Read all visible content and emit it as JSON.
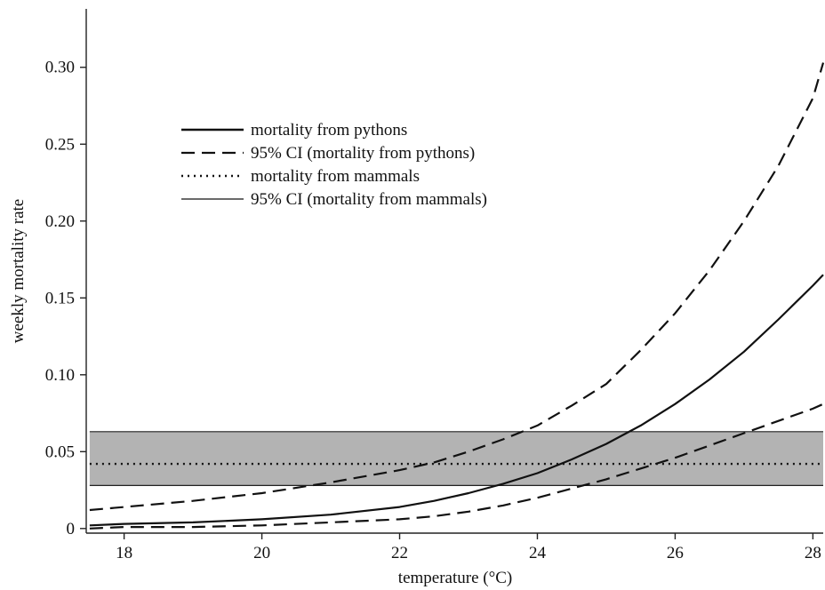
{
  "chart_data": {
    "type": "line",
    "title": "",
    "xlabel": "temperature (°C)",
    "ylabel": "weekly mortality rate",
    "xlim": [
      17.45,
      28.15
    ],
    "ylim": [
      -0.003,
      0.338
    ],
    "x_ticks": [
      18,
      20,
      22,
      24,
      26,
      28
    ],
    "x_tick_labels": [
      "18",
      "20",
      "22",
      "24",
      "26",
      "28"
    ],
    "y_ticks": [
      0,
      0.05,
      0.1,
      0.15,
      0.2,
      0.25,
      0.3
    ],
    "y_tick_labels": [
      "0",
      "0.05",
      "0.10",
      "0.15",
      "0.20",
      "0.25",
      "0.30"
    ],
    "grid": false,
    "legend_position": "top-left",
    "band": {
      "name": "95% CI (mortality from mammals)",
      "lower": 0.028,
      "upper": 0.063,
      "color": "#b3b3b3"
    },
    "series": [
      {
        "name": "mortality from pythons",
        "style": "solid",
        "x": [
          17.5,
          18,
          19,
          20,
          21,
          22,
          22.5,
          23,
          23.5,
          24,
          24.5,
          25,
          25.5,
          26,
          26.5,
          27,
          27.5,
          28,
          28.15
        ],
        "y": [
          0.002,
          0.003,
          0.004,
          0.006,
          0.009,
          0.014,
          0.018,
          0.023,
          0.029,
          0.036,
          0.045,
          0.055,
          0.067,
          0.081,
          0.097,
          0.115,
          0.136,
          0.158,
          0.165
        ]
      },
      {
        "name": "95% CI (mortality from pythons)",
        "style": "dashed",
        "x": [
          17.5,
          18,
          19,
          20,
          21,
          22,
          22.5,
          23,
          23.5,
          24,
          24.5,
          25,
          25.5,
          26,
          26.5,
          27,
          27.5,
          28,
          28.15
        ],
        "y": [
          0.012,
          0.014,
          0.018,
          0.023,
          0.03,
          0.038,
          0.043,
          0.05,
          0.058,
          0.067,
          0.08,
          0.094,
          0.116,
          0.14,
          0.168,
          0.2,
          0.236,
          0.28,
          0.303
        ]
      },
      {
        "name": "95% CI (mortality from pythons) lower",
        "style": "dashed",
        "x": [
          17.5,
          18,
          19,
          20,
          21,
          22,
          22.5,
          23,
          23.5,
          24,
          24.5,
          25,
          25.5,
          26,
          26.5,
          27,
          27.5,
          28,
          28.15
        ],
        "y": [
          0.0,
          0.001,
          0.001,
          0.002,
          0.004,
          0.006,
          0.008,
          0.011,
          0.015,
          0.02,
          0.026,
          0.032,
          0.039,
          0.046,
          0.054,
          0.062,
          0.07,
          0.078,
          0.081
        ]
      },
      {
        "name": "mortality from mammals",
        "style": "dotted",
        "x": [
          17.5,
          28.15
        ],
        "y": [
          0.042,
          0.042
        ]
      }
    ],
    "legend": [
      {
        "label": "mortality from pythons",
        "style": "solid-thick"
      },
      {
        "label": "95% CI (mortality from pythons)",
        "style": "dashed"
      },
      {
        "label": "mortality from mammals",
        "style": "dotted"
      },
      {
        "label": "95% CI (mortality from mammals)",
        "style": "solid-thin"
      }
    ]
  }
}
